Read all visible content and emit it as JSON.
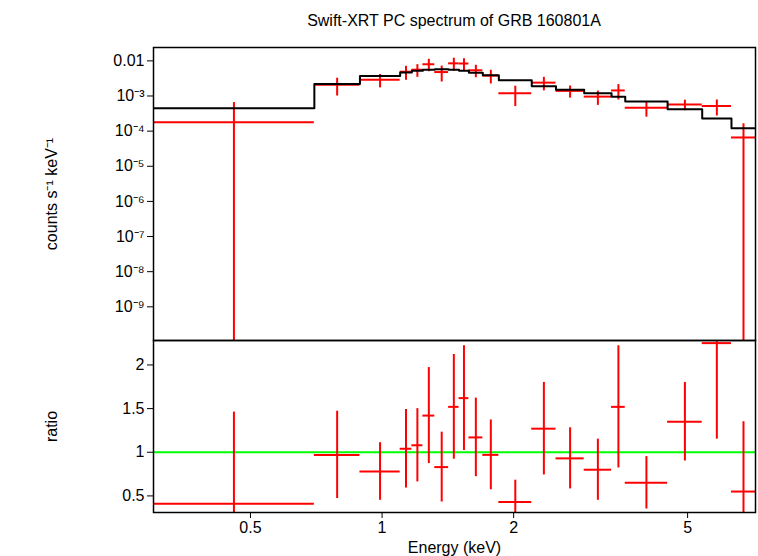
{
  "chart_data": [
    {
      "type": "spectrum",
      "title": "Swift-XRT PC spectrum of GRB 160801A",
      "ylabel": "counts s⁻¹ keV⁻¹",
      "log": true,
      "tick_labels": "y",
      "x_low": [
        0.3,
        0.7,
        0.89,
        1.1,
        1.17,
        1.24,
        1.32,
        1.42,
        1.5,
        1.58,
        1.7,
        1.85,
        2.2,
        2.5,
        2.9,
        3.35,
        3.6,
        4.5,
        5.4,
        6.3
      ],
      "x_high": [
        0.7,
        0.89,
        1.1,
        1.17,
        1.24,
        1.32,
        1.42,
        1.5,
        1.58,
        1.7,
        1.85,
        2.2,
        2.5,
        2.9,
        3.35,
        3.6,
        4.5,
        5.4,
        6.3,
        7.15
      ],
      "series": [
        {
          "type": "errorbar",
          "color": "#ff0000",
          "values": [
            0.00018,
            0.0021,
            0.0029,
            0.0049,
            0.0056,
            0.008,
            0.0048,
            0.0085,
            0.0084,
            0.0054,
            0.0038,
            0.0012,
            0.0024,
            0.0014,
            0.00096,
            0.00144,
            0.00046,
            0.00057,
            0.00052,
            6.6e-05
          ],
          "y_err": [
            0.00047,
            0.0011,
            0.0012,
            0.0021,
            0.0022,
            0.0031,
            0.0023,
            0.0034,
            0.0031,
            0.0021,
            0.0016,
            0.0007,
            0.001,
            0.00053,
            0.00042,
            0.00067,
            0.00021,
            0.00019,
            0.00025,
            9.6e-05
          ]
        },
        {
          "type": "step",
          "color": "#000000",
          "values": [
            0.00045,
            0.0022,
            0.0037,
            0.0047,
            0.0052,
            0.0056,
            0.0058,
            0.0056,
            0.0052,
            0.0046,
            0.0039,
            0.0028,
            0.0019,
            0.0015,
            0.0012,
            0.00095,
            0.0007,
            0.00042,
            0.00023,
            0.00012
          ]
        }
      ],
      "xlim": [
        0.3,
        7.15
      ],
      "xticks": [
        0.5,
        1,
        2,
        5
      ],
      "ylim": [
        1.1e-10,
        0.024
      ],
      "yticks": [
        0.01,
        {
          "value": 0.001,
          "label": "10⁻³"
        },
        {
          "value": 0.0001,
          "label": "10⁻⁴"
        },
        {
          "value": 1e-05,
          "label": "10⁻⁵"
        },
        {
          "value": 1e-06,
          "label": "10⁻⁶"
        },
        {
          "value": 1e-07,
          "label": "10⁻⁷"
        },
        {
          "value": 1e-08,
          "label": "10⁻⁸"
        },
        {
          "value": 1e-09,
          "label": "10⁻⁹"
        }
      ]
    },
    {
      "type": "ratio",
      "xlabel": "Energy (keV)",
      "ylabel": "ratio",
      "log": "x",
      "x_low": [
        0.3,
        0.7,
        0.89,
        1.1,
        1.17,
        1.24,
        1.32,
        1.42,
        1.5,
        1.58,
        1.7,
        1.85,
        2.2,
        2.5,
        2.9,
        3.35,
        3.6,
        4.5,
        5.4,
        6.3
      ],
      "x_high": [
        0.7,
        0.89,
        1.1,
        1.17,
        1.24,
        1.32,
        1.42,
        1.5,
        1.58,
        1.7,
        1.85,
        2.2,
        2.5,
        2.9,
        3.35,
        3.6,
        4.5,
        5.4,
        6.3,
        7.15
      ],
      "series": [
        {
          "type": "errorbar",
          "color": "#ff0000",
          "values": [
            0.41,
            0.97,
            0.78,
            1.04,
            1.08,
            1.42,
            0.83,
            1.52,
            1.62,
            1.17,
            0.97,
            0.43,
            1.27,
            0.93,
            0.8,
            1.52,
            0.65,
            1.35,
            2.25,
            0.55
          ],
          "y_err": [
            1.05,
            0.5,
            0.33,
            0.45,
            0.42,
            0.55,
            0.4,
            0.6,
            0.6,
            0.45,
            0.4,
            0.25,
            0.53,
            0.35,
            0.35,
            0.7,
            0.3,
            0.45,
            1.1,
            0.8
          ]
        }
      ],
      "hline": {
        "value": 1,
        "color": "#00ff00"
      },
      "xlim": [
        0.3,
        7.15
      ],
      "xticks": [
        0.5,
        1,
        2,
        5
      ],
      "ylim": [
        0.31,
        2.28
      ],
      "yticks": [
        0.5,
        1,
        1.5,
        2
      ]
    }
  ]
}
